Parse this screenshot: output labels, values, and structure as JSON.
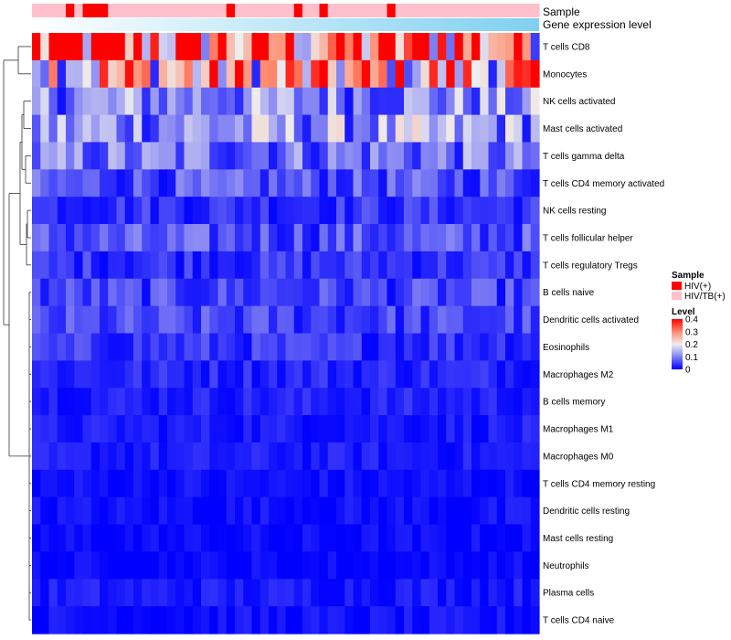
{
  "chart_data": {
    "type": "heatmap",
    "annotation_labels": {
      "sample": "Sample",
      "expression": "Gene expression level"
    },
    "sample_groups": [
      "HIV(+)",
      "HIV/TB(+)"
    ],
    "sample_annotation": [
      1,
      1,
      1,
      1,
      0,
      1,
      0,
      0,
      0,
      1,
      1,
      1,
      1,
      1,
      1,
      1,
      1,
      1,
      1,
      1,
      1,
      1,
      1,
      0,
      1,
      1,
      1,
      1,
      1,
      1,
      1,
      0,
      1,
      1,
      0,
      1,
      1,
      1,
      1,
      1,
      1,
      1,
      0,
      1,
      1,
      1,
      1,
      1,
      1,
      1,
      1,
      1,
      1,
      1,
      1,
      1,
      1,
      1,
      1,
      1
    ],
    "rows": [
      "T cells CD8",
      "Monocytes",
      "NK cells activated",
      "Mast cells activated",
      "T cells gamma delta",
      "T cells CD4 memory activated",
      "NK cells resting",
      "T cells follicular helper",
      "T cells regulatory  Tregs",
      "B cells naive",
      "Dendritic cells activated",
      "Eosinophils",
      "Macrophages M2",
      "B cells memory",
      "Macrophages M1",
      "Macrophages M0",
      "T cells CD4 memory resting",
      "Dendritic cells resting",
      "Mast cells resting",
      "Neutrophils",
      "Plasma cells",
      "T cells CD4 naive"
    ],
    "n_columns": 60,
    "row_means": [
      0.33,
      0.24,
      0.11,
      0.12,
      0.09,
      0.06,
      0.04,
      0.06,
      0.04,
      0.05,
      0.05,
      0.04,
      0.03,
      0.025,
      0.02,
      0.02,
      0.01,
      0.01,
      0.005,
      0.003,
      0.02,
      0.01
    ],
    "color_scale": {
      "stops": [
        0,
        0.1,
        0.2,
        0.3,
        0.4
      ],
      "colors": [
        "#0000ff",
        "#8080f4",
        "#eeeeee",
        "#ff8c70",
        "#ff0000"
      ]
    },
    "colors": {
      "hiv": "#ff0000",
      "hivtb": "#ffc0cb",
      "expression_bar": "#7fd0f0"
    },
    "legend": {
      "sample_title": "Sample",
      "level_title": "Level",
      "level_ticks": [
        "0.4",
        "0.3",
        "0.2",
        "0.1",
        "0"
      ]
    }
  }
}
